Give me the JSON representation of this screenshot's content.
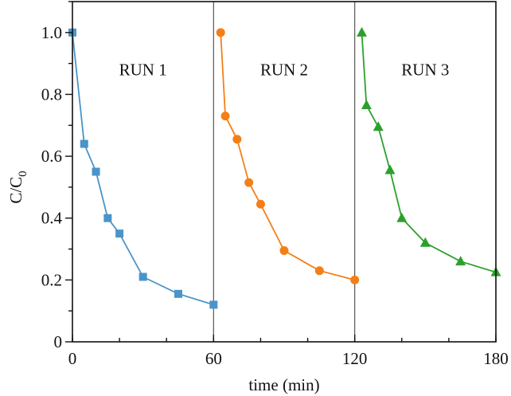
{
  "chart_data": {
    "type": "line",
    "title": "",
    "xlabel": "time (min)",
    "ylabel": "C/C0",
    "ylabel_main": "C/C",
    "ylabel_sub": "0",
    "xlim": [
      0,
      180
    ],
    "ylim": [
      0,
      1.1
    ],
    "xticks": [
      0,
      60,
      120,
      180
    ],
    "xtick_labels": [
      "0",
      "60",
      "120",
      "180"
    ],
    "yticks": [
      0,
      0.2,
      0.4,
      0.6,
      0.8,
      1.0
    ],
    "ytick_labels": [
      "0",
      "0.2",
      "0.4",
      "0.6",
      "0.8",
      "1.0"
    ],
    "grid": false,
    "legend": "none",
    "separators": [
      60,
      120
    ],
    "annotations": [
      {
        "text": "RUN 1",
        "x": 30,
        "y": 0.88
      },
      {
        "text": "RUN 2",
        "x": 90,
        "y": 0.88
      },
      {
        "text": "RUN 3",
        "x": 150,
        "y": 0.88
      }
    ],
    "series": [
      {
        "name": "RUN 1",
        "marker": "square",
        "color": "#4a94c9",
        "x": [
          0,
          5,
          10,
          15,
          20,
          30,
          45,
          60
        ],
        "values": [
          1.0,
          0.64,
          0.55,
          0.4,
          0.35,
          0.21,
          0.155,
          0.12
        ]
      },
      {
        "name": "RUN 2",
        "marker": "circle",
        "color": "#f47f17",
        "x": [
          63,
          65,
          70,
          75,
          80,
          90,
          105,
          120
        ],
        "values": [
          1.0,
          0.73,
          0.655,
          0.515,
          0.445,
          0.295,
          0.23,
          0.2
        ]
      },
      {
        "name": "RUN 3",
        "marker": "triangle",
        "color": "#2ca02c",
        "x": [
          123,
          125,
          130,
          135,
          140,
          150,
          165,
          180
        ],
        "values": [
          1.0,
          0.765,
          0.695,
          0.555,
          0.4,
          0.32,
          0.26,
          0.225
        ]
      }
    ]
  }
}
